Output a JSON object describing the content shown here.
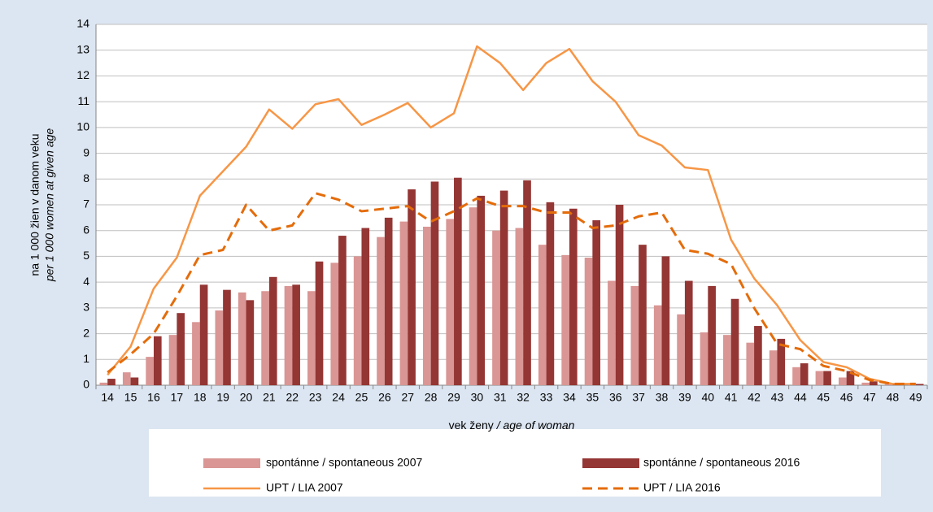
{
  "chart_data": {
    "type": "bar",
    "y_label": [
      "na 1 000 žien v danom veku",
      "per 1 000 women at given age"
    ],
    "x_label": [
      "vek ženy",
      " / age of woman"
    ],
    "categories": [
      14,
      15,
      16,
      17,
      18,
      19,
      20,
      21,
      22,
      23,
      24,
      25,
      26,
      27,
      28,
      29,
      30,
      31,
      32,
      33,
      34,
      35,
      36,
      37,
      38,
      39,
      40,
      41,
      42,
      43,
      44,
      45,
      46,
      47,
      48,
      49
    ],
    "ylim": [
      0,
      14
    ],
    "yticks": [
      0,
      1,
      2,
      3,
      4,
      5,
      6,
      7,
      8,
      9,
      10,
      11,
      12,
      13,
      14
    ],
    "grid": true,
    "series": [
      {
        "name": "spontánne / spontaneous 2007",
        "type": "bar",
        "color": "#d99694",
        "values": [
          0.1,
          0.5,
          1.1,
          1.95,
          2.45,
          2.9,
          3.6,
          3.65,
          3.85,
          3.65,
          4.75,
          5.0,
          5.75,
          6.35,
          6.15,
          6.45,
          6.9,
          6.0,
          6.1,
          5.45,
          5.05,
          4.95,
          4.05,
          3.85,
          3.1,
          2.75,
          2.05,
          1.95,
          1.65,
          1.35,
          0.7,
          0.55,
          0.3,
          0.1,
          0.05,
          0.02
        ]
      },
      {
        "name": "spontánne / spontaneous 2016",
        "type": "bar",
        "color": "#943634",
        "values": [
          0.25,
          0.3,
          1.9,
          2.8,
          3.9,
          3.7,
          3.3,
          4.2,
          3.9,
          4.8,
          5.8,
          6.1,
          6.5,
          7.6,
          7.9,
          8.05,
          7.35,
          7.55,
          7.95,
          7.1,
          6.85,
          6.4,
          7.0,
          5.45,
          5.0,
          4.05,
          3.85,
          3.35,
          2.3,
          1.8,
          0.85,
          0.55,
          0.55,
          0.15,
          0.05,
          0.05
        ]
      },
      {
        "name": "UPT / LIA 2007",
        "type": "line",
        "dashed": false,
        "color": "#f79646",
        "values": [
          0.4,
          1.5,
          3.75,
          4.95,
          7.35,
          8.3,
          9.25,
          10.7,
          9.95,
          10.9,
          11.1,
          10.1,
          10.5,
          10.95,
          10.0,
          10.55,
          13.15,
          12.5,
          11.45,
          12.5,
          13.05,
          11.8,
          11.0,
          9.7,
          9.3,
          8.45,
          8.35,
          5.65,
          4.15,
          3.1,
          1.75,
          0.9,
          0.7,
          0.25,
          0.05,
          0.05
        ]
      },
      {
        "name": "UPT / LIA 2016",
        "type": "line",
        "dashed": true,
        "color": "#e46c0a",
        "values": [
          0.5,
          1.2,
          2.0,
          3.45,
          5.05,
          5.25,
          7.0,
          6.0,
          6.2,
          7.45,
          7.2,
          6.75,
          6.85,
          6.95,
          6.35,
          6.75,
          7.25,
          6.95,
          6.95,
          6.7,
          6.7,
          6.1,
          6.2,
          6.55,
          6.7,
          5.25,
          5.1,
          4.7,
          3.0,
          1.6,
          1.4,
          0.75,
          0.55,
          0.2,
          0.05,
          0.05
        ]
      }
    ]
  }
}
